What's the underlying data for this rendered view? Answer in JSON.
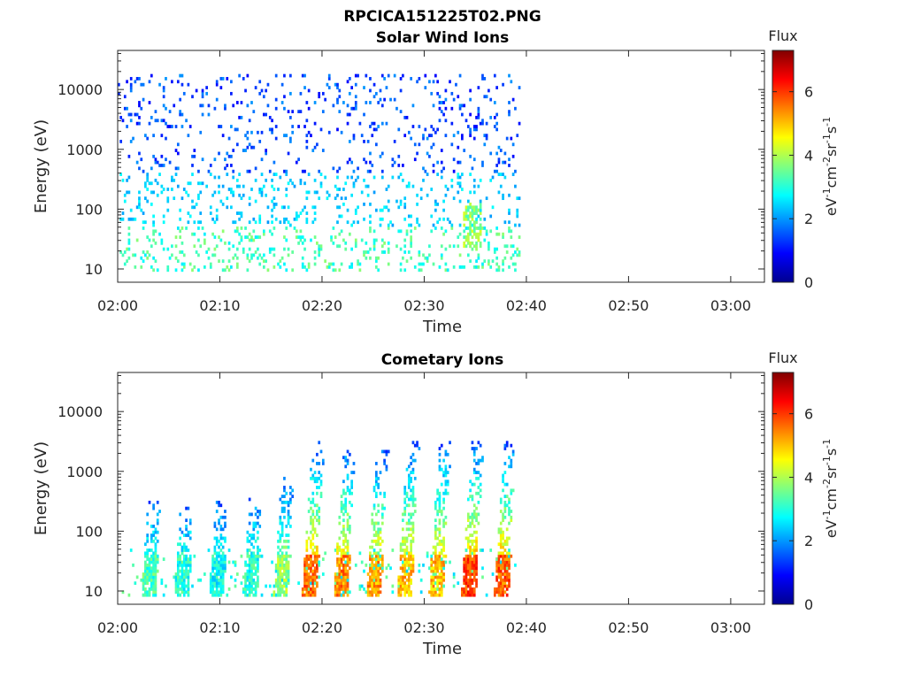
{
  "figure_title": "RPCICA151225T02.PNG",
  "chart_data": [
    {
      "type": "heatmap",
      "title": "Solar Wind Ions",
      "xlabel": "Time",
      "ylabel": "Energy (eV)",
      "x_ticks": [
        "02:00",
        "02:10",
        "02:20",
        "02:30",
        "02:40",
        "02:50",
        "03:00"
      ],
      "xlim_minutes": [
        0,
        63.3
      ],
      "data_end_minute": 39.4,
      "y_scale": "log",
      "y_ticks": [
        10,
        100,
        1000,
        10000
      ],
      "y_tick_labels": [
        "10",
        "100",
        "1000",
        "10000"
      ],
      "ylim": [
        6,
        45000
      ],
      "colorbar": {
        "label": "Flux",
        "unit": "eV-1cm-2sr-1s-1",
        "range": [
          0,
          7.3
        ],
        "ticks": [
          "0",
          "2",
          "4",
          "6"
        ]
      },
      "colormap": "jet",
      "description_pattern": "sparse scatter of low-flux (~1-3) pixels from 10 eV to 15000 eV; moderate (~3-4) pulses below 40 eV every ~2.7 min; enhanced feature near 02:34-02:35 at 20-100 eV",
      "bands": [
        {
          "e_min": 8,
          "e_max": 45,
          "flux_min": 2.6,
          "flux_max": 3.8,
          "density": 0.12
        },
        {
          "e_min": 45,
          "e_max": 400,
          "flux_min": 2.0,
          "flux_max": 2.8,
          "density": 0.1
        },
        {
          "e_min": 400,
          "e_max": 16000,
          "flux_min": 0.9,
          "flux_max": 2.0,
          "density": 0.08
        }
      ],
      "pulses_minute": [],
      "features": [
        {
          "t_start": 33.6,
          "t_end": 35.4,
          "e_min": 20,
          "e_max": 120,
          "flux": 4.4
        }
      ]
    },
    {
      "type": "heatmap",
      "title": "Cometary Ions",
      "xlabel": "Time",
      "ylabel": "Energy (eV)",
      "x_ticks": [
        "02:00",
        "02:10",
        "02:20",
        "02:30",
        "02:40",
        "02:50",
        "03:00"
      ],
      "xlim_minutes": [
        0,
        63.3
      ],
      "data_end_minute": 39.4,
      "y_scale": "log",
      "y_ticks": [
        10,
        100,
        1000,
        10000
      ],
      "y_tick_labels": [
        "10",
        "100",
        "1000",
        "10000"
      ],
      "ylim": [
        6,
        45000
      ],
      "colorbar": {
        "label": "Flux",
        "unit": "eV-1cm-2sr-1s-1",
        "range": [
          0,
          7.3
        ],
        "ticks": [
          "0",
          "2",
          "4",
          "6"
        ]
      },
      "colormap": "jet",
      "description_pattern": "periodic bursts (~3 min period) with peak flux 5-6.5 at 15-35 eV, extending up to ~3000 eV with lower flux after 02:17",
      "pulses_minute": [
        2.6,
        5.8,
        9.2,
        12.5,
        15.5,
        18.3,
        21.4,
        24.6,
        27.6,
        30.7,
        33.9,
        37.1
      ],
      "pulse_peak_flux": [
        3.8,
        3.6,
        3.4,
        3.6,
        4.4,
        6.2,
        6.0,
        5.8,
        5.6,
        5.6,
        6.5,
        6.3
      ],
      "pulse_top_energy": [
        300,
        250,
        300,
        400,
        800,
        3000,
        2500,
        2200,
        3000,
        3000,
        3000,
        3000
      ]
    }
  ]
}
